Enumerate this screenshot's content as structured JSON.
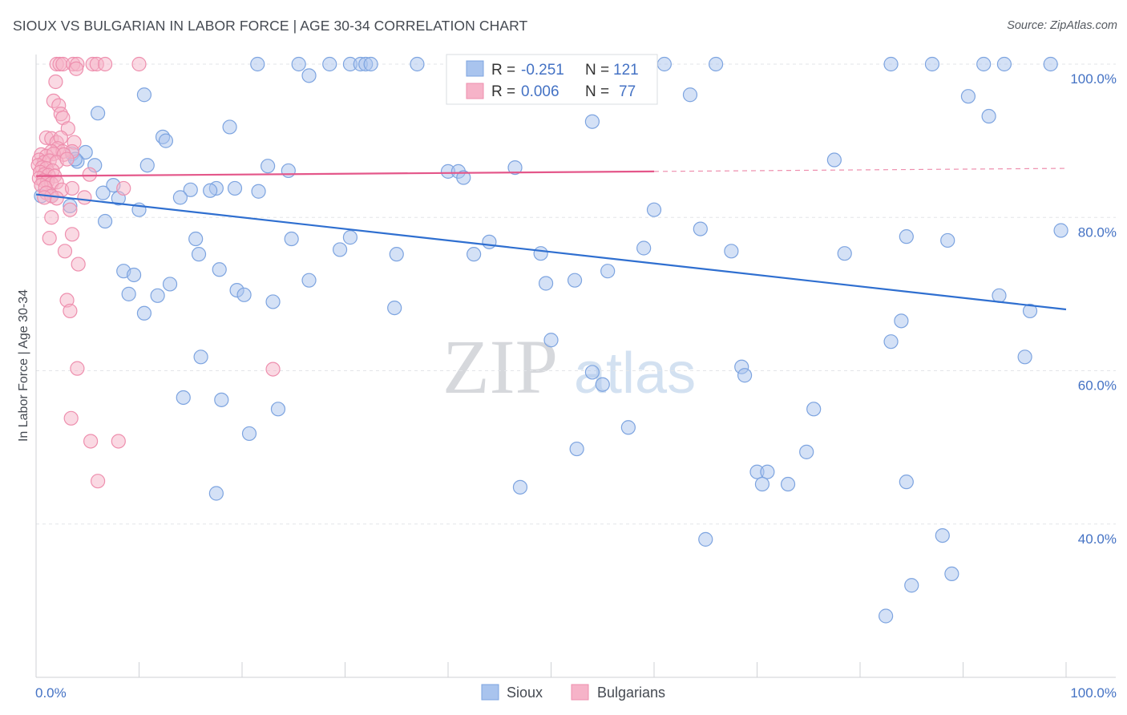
{
  "title": "SIOUX VS BULGARIAN IN LABOR FORCE | AGE 30-34 CORRELATION CHART",
  "source": "Source: ZipAtlas.com",
  "watermark": {
    "zip": "ZIP",
    "atlas": "atlas"
  },
  "legend": {
    "rows": [
      {
        "r_label": "R =",
        "r_value": "-0.251",
        "n_label": "N =",
        "n_value": "121",
        "color": "#a9c4ee",
        "stroke": "#7da4e0"
      },
      {
        "r_label": "R =",
        "r_value": "0.006",
        "n_label": "N =",
        "n_value": "77",
        "color": "#f6b3c8",
        "stroke": "#ee8fae"
      }
    ]
  },
  "chart_data": {
    "type": "scatter",
    "title": "SIOUX VS BULGARIAN IN LABOR FORCE | AGE 30-34 CORRELATION CHART",
    "xlabel": "",
    "ylabel": "In Labor Force | Age 30-34",
    "xlim": [
      0,
      100
    ],
    "ylim": [
      20,
      100
    ],
    "x_tick_labels": [
      "0.0%",
      "100.0%"
    ],
    "y_ticks": [
      40,
      60,
      80,
      100
    ],
    "y_tick_labels": [
      "40.0%",
      "60.0%",
      "80.0%",
      "100.0%"
    ],
    "grid": true,
    "legend_position": "bottom",
    "series": [
      {
        "name": "Sioux",
        "color": "#7da4e0",
        "fill": "#a9c4ee",
        "trend": {
          "x": [
            0,
            100
          ],
          "y": [
            83,
            68
          ]
        },
        "points": [
          [
            21.5,
            100
          ],
          [
            25.5,
            100
          ],
          [
            28.5,
            100
          ],
          [
            30.5,
            100
          ],
          [
            31.5,
            100
          ],
          [
            32.0,
            100
          ],
          [
            32.5,
            100
          ],
          [
            37.0,
            100
          ],
          [
            48.5,
            100
          ],
          [
            61.0,
            100
          ],
          [
            66.0,
            100
          ],
          [
            83.0,
            100
          ],
          [
            87.0,
            100
          ],
          [
            92.0,
            100
          ],
          [
            94.0,
            100
          ],
          [
            98.5,
            100
          ],
          [
            26.5,
            98.5
          ],
          [
            10.5,
            96
          ],
          [
            63.5,
            96
          ],
          [
            90.5,
            95.8
          ],
          [
            6.0,
            93.6
          ],
          [
            92.5,
            93.2
          ],
          [
            54.0,
            92.5
          ],
          [
            18.8,
            91.8
          ],
          [
            12.3,
            90.5
          ],
          [
            12.6,
            90
          ],
          [
            4.8,
            88.5
          ],
          [
            3.5,
            88.3
          ],
          [
            4.0,
            87.3
          ],
          [
            3.8,
            87.6
          ],
          [
            77.5,
            87.5
          ],
          [
            5.7,
            86.8
          ],
          [
            10.8,
            86.8
          ],
          [
            22.5,
            86.7
          ],
          [
            46.5,
            86.5
          ],
          [
            24.5,
            86.1
          ],
          [
            40.0,
            86
          ],
          [
            41.0,
            86
          ],
          [
            41.5,
            85.2
          ],
          [
            7.5,
            84.2
          ],
          [
            17.5,
            83.8
          ],
          [
            19.3,
            83.8
          ],
          [
            15.0,
            83.6
          ],
          [
            16.9,
            83.5
          ],
          [
            21.6,
            83.4
          ],
          [
            6.5,
            83.2
          ],
          [
            14.0,
            82.6
          ],
          [
            8.0,
            82.5
          ],
          [
            0.5,
            82.8
          ],
          [
            1.5,
            82.8
          ],
          [
            3.3,
            81.5
          ],
          [
            60.0,
            81
          ],
          [
            10.0,
            81
          ],
          [
            6.7,
            79.5
          ],
          [
            64.5,
            78.5
          ],
          [
            84.5,
            77.5
          ],
          [
            99.5,
            78.3
          ],
          [
            15.5,
            77.2
          ],
          [
            24.8,
            77.2
          ],
          [
            30.5,
            77.4
          ],
          [
            88.5,
            77
          ],
          [
            44.0,
            76.8
          ],
          [
            29.5,
            75.8
          ],
          [
            59.0,
            76
          ],
          [
            67.5,
            75.6
          ],
          [
            15.8,
            75.2
          ],
          [
            35.0,
            75.2
          ],
          [
            42.5,
            75.2
          ],
          [
            49.0,
            75.3
          ],
          [
            78.5,
            75.3
          ],
          [
            17.8,
            73.2
          ],
          [
            8.5,
            73
          ],
          [
            9.5,
            72.5
          ],
          [
            55.5,
            73
          ],
          [
            26.5,
            71.8
          ],
          [
            52.3,
            71.8
          ],
          [
            49.5,
            71.4
          ],
          [
            13.0,
            71.3
          ],
          [
            19.5,
            70.5
          ],
          [
            9.0,
            70.0
          ],
          [
            11.8,
            69.8
          ],
          [
            20.2,
            69.9
          ],
          [
            23.0,
            69.0
          ],
          [
            93.5,
            69.8
          ],
          [
            34.8,
            68.2
          ],
          [
            10.5,
            67.5
          ],
          [
            96.5,
            67.8
          ],
          [
            84.0,
            66.5
          ],
          [
            50.0,
            64.0
          ],
          [
            83.0,
            63.8
          ],
          [
            16.0,
            61.8
          ],
          [
            96.0,
            61.8
          ],
          [
            68.5,
            60.5
          ],
          [
            54.0,
            59.8
          ],
          [
            68.8,
            59.4
          ],
          [
            55.0,
            58.2
          ],
          [
            14.3,
            56.5
          ],
          [
            18.0,
            56.2
          ],
          [
            23.5,
            55
          ],
          [
            75.5,
            55
          ],
          [
            57.5,
            52.6
          ],
          [
            20.7,
            51.8
          ],
          [
            52.5,
            49.8
          ],
          [
            74.8,
            49.4
          ],
          [
            70.0,
            46.8
          ],
          [
            71.0,
            46.8
          ],
          [
            70.5,
            45.2
          ],
          [
            73.0,
            45.2
          ],
          [
            84.5,
            45.5
          ],
          [
            47.0,
            44.8
          ],
          [
            17.5,
            44.0
          ],
          [
            65.0,
            38
          ],
          [
            88.0,
            38.5
          ],
          [
            88.9,
            33.5
          ],
          [
            85.0,
            32
          ],
          [
            82.5,
            28
          ]
        ]
      },
      {
        "name": "Bulgarians",
        "color": "#ee8fae",
        "fill": "#f6b3c8",
        "trend": {
          "x": [
            0,
            60
          ],
          "y": [
            85.4,
            86.0
          ]
        },
        "points": [
          [
            2.0,
            100
          ],
          [
            2.3,
            100
          ],
          [
            2.6,
            100
          ],
          [
            3.6,
            100
          ],
          [
            4.0,
            100
          ],
          [
            5.5,
            100
          ],
          [
            5.9,
            100
          ],
          [
            6.7,
            100
          ],
          [
            3.9,
            99.4
          ],
          [
            10.0,
            100
          ],
          [
            1.9,
            97.7
          ],
          [
            1.7,
            95.2
          ],
          [
            2.2,
            94.6
          ],
          [
            2.4,
            93.5
          ],
          [
            2.6,
            93
          ],
          [
            3.1,
            91.6
          ],
          [
            1.0,
            90.4
          ],
          [
            1.5,
            90.3
          ],
          [
            2.0,
            89.8
          ],
          [
            2.4,
            90.4
          ],
          [
            3.7,
            89.8
          ],
          [
            2.1,
            89.0
          ],
          [
            1.5,
            88.6
          ],
          [
            2.6,
            88.6
          ],
          [
            3.5,
            88.6
          ],
          [
            0.5,
            88.2
          ],
          [
            1.0,
            88.0
          ],
          [
            1.7,
            88.3
          ],
          [
            2.7,
            88.2
          ],
          [
            0.3,
            87.5
          ],
          [
            0.8,
            87.2
          ],
          [
            1.3,
            87.4
          ],
          [
            2.0,
            87.2
          ],
          [
            3.0,
            87.6
          ],
          [
            0.2,
            86.8
          ],
          [
            0.6,
            86.5
          ],
          [
            1.0,
            86.4
          ],
          [
            1.6,
            86.1
          ],
          [
            0.4,
            85.9
          ],
          [
            0.8,
            85.6
          ],
          [
            1.2,
            85.5
          ],
          [
            1.8,
            85.4
          ],
          [
            0.3,
            85.1
          ],
          [
            0.7,
            84.8
          ],
          [
            1.1,
            84.7
          ],
          [
            1.5,
            84.4
          ],
          [
            2.0,
            84.6
          ],
          [
            0.5,
            84.2
          ],
          [
            0.9,
            83.9
          ],
          [
            5.2,
            85.6
          ],
          [
            2.5,
            83.6
          ],
          [
            3.5,
            83.8
          ],
          [
            8.5,
            83.8
          ],
          [
            1.0,
            83.2
          ],
          [
            1.5,
            82.8
          ],
          [
            2.0,
            82.5
          ],
          [
            0.8,
            82.6
          ],
          [
            4.7,
            82.6
          ],
          [
            3.3,
            81.0
          ],
          [
            1.5,
            80.0
          ],
          [
            3.5,
            77.8
          ],
          [
            1.3,
            77.3
          ],
          [
            2.8,
            75.6
          ],
          [
            4.1,
            73.9
          ],
          [
            3.0,
            69.2
          ],
          [
            3.3,
            67.8
          ],
          [
            4.0,
            60.3
          ],
          [
            23.0,
            60.2
          ],
          [
            3.4,
            53.8
          ],
          [
            5.3,
            50.8
          ],
          [
            8.0,
            50.8
          ],
          [
            6.0,
            45.6
          ]
        ]
      }
    ]
  }
}
